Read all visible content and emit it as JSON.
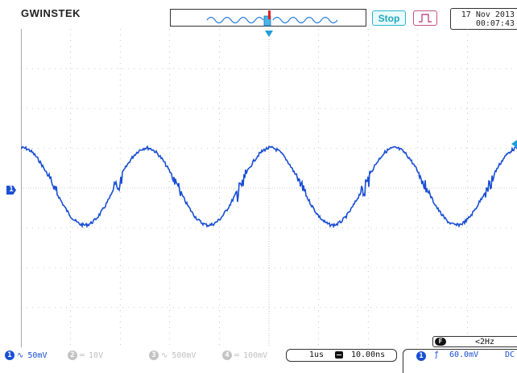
{
  "brand": "GWINSTEK",
  "status": {
    "run_state": "Stop",
    "date": "17 Nov 2013",
    "time": "00:07:43"
  },
  "trigger_counter": {
    "badge": "F",
    "value": "<2Hz"
  },
  "channels": [
    {
      "id": "1",
      "icon": "ac-coupling-icon",
      "glyph": "∿",
      "scale": "50mV",
      "active": true
    },
    {
      "id": "2",
      "icon": "dc-coupling-icon",
      "glyph": "═",
      "scale": "10V",
      "active": false
    },
    {
      "id": "3",
      "icon": "ac-coupling-icon",
      "glyph": "∿",
      "scale": "500mV",
      "active": false
    },
    {
      "id": "4",
      "icon": "dc-coupling-icon",
      "glyph": "═",
      "scale": "100mV",
      "active": false
    }
  ],
  "horizontal": {
    "time_div": "1us",
    "position": "10.00ns"
  },
  "trigger": {
    "source": "1",
    "edge_glyph": "ƒ",
    "level": "60.0mV",
    "coupling": "DC"
  },
  "channel_marker": "1",
  "colors": {
    "trace": "#1a4fd4",
    "grid": "#9a9a9a",
    "marker": "#1a9fd8",
    "stop": "#1fa7bd",
    "trigger_mode": "#c44f86"
  }
}
